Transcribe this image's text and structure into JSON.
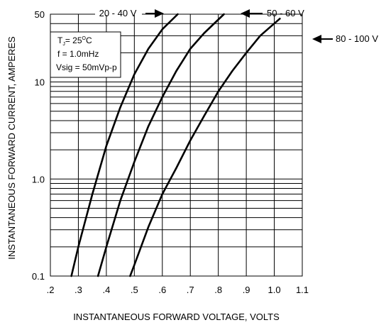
{
  "chart_data": {
    "type": "line",
    "title": "",
    "xlabel": "INSTANTANEOUS FORWARD VOLTAGE, VOLTS",
    "ylabel": "INSTANTANEOUS FORWARD CURRENT, AMPERES",
    "xlim": [
      0.2,
      1.1
    ],
    "ylim": [
      0.1,
      50
    ],
    "yscale": "log",
    "grid": true,
    "x_ticks": [
      ".2",
      ".3",
      ".4",
      ".5",
      ".6",
      ".7",
      ".8",
      ".9",
      "1.0",
      "1.1"
    ],
    "y_ticks": [
      {
        "value": 0.1,
        "label": "0.1"
      },
      {
        "value": 1.0,
        "label": "1.0"
      },
      {
        "value": 10,
        "label": "10"
      },
      {
        "value": 50,
        "label": "50"
      }
    ],
    "series": [
      {
        "name": "20 - 40 V",
        "x": [
          0.275,
          0.3,
          0.35,
          0.4,
          0.45,
          0.5,
          0.55,
          0.6,
          0.655
        ],
        "y": [
          0.1,
          0.2,
          0.7,
          2.2,
          5.5,
          12,
          22,
          35,
          50
        ]
      },
      {
        "name": "50 - 60 V",
        "x": [
          0.37,
          0.4,
          0.45,
          0.5,
          0.55,
          0.6,
          0.65,
          0.7,
          0.75,
          0.82
        ],
        "y": [
          0.1,
          0.2,
          0.6,
          1.5,
          3.5,
          7,
          13,
          22,
          32,
          50
        ]
      },
      {
        "name": "80 - 100 V",
        "x": [
          0.485,
          0.5,
          0.55,
          0.6,
          0.65,
          0.7,
          0.75,
          0.8,
          0.85,
          0.9,
          0.95,
          1.02
        ],
        "y": [
          0.1,
          0.13,
          0.32,
          0.7,
          1.3,
          2.5,
          4.5,
          8,
          13,
          20,
          30,
          45
        ]
      }
    ],
    "notes": {
      "tj_main": "T",
      "tj_sub": "J",
      "tj_rest": "= 25",
      "tj_sup": "O",
      "tj_unit": "C",
      "freq": "f = 1.0mHz",
      "vsig": "Vsig = 50mVp-p"
    }
  }
}
